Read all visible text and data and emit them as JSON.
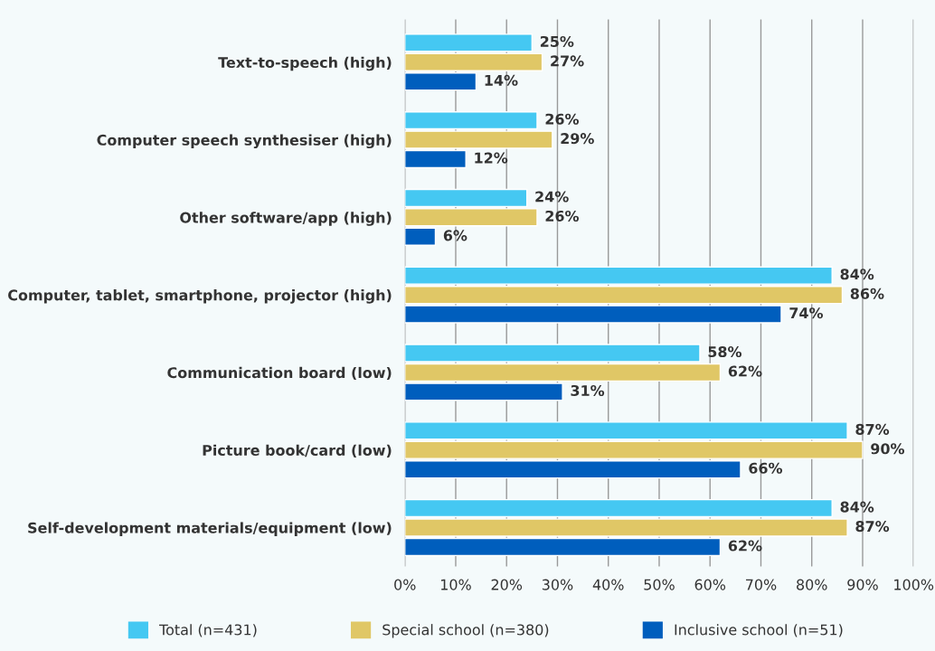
{
  "chart_data": {
    "type": "bar",
    "orientation": "horizontal",
    "categories": [
      "Text-to-speech (high)",
      "Computer speech synthesiser (high)",
      "Other software/app (high)",
      "Computer, tablet, smartphone, projector (high)",
      "Communication board (low)",
      "Picture book/card (low)",
      "Self-development materials/equipment (low)"
    ],
    "series": [
      {
        "name": "Total (n=431)",
        "color": "#45c8f2",
        "values": [
          25,
          26,
          24,
          84,
          58,
          87,
          84
        ],
        "value_labels": [
          "25%",
          "26%",
          "24%",
          "84%",
          "58%",
          "87%",
          "84%"
        ]
      },
      {
        "name": "Special school (n=380)",
        "color": "#e0c766",
        "values": [
          27,
          29,
          26,
          86,
          62,
          90,
          87
        ],
        "value_labels": [
          "27%",
          "29%",
          "26%",
          "86%",
          "62%",
          "90%",
          "87%"
        ]
      },
      {
        "name": "Inclusive school (n=51)",
        "color": "#005ebd",
        "values": [
          14,
          12,
          6,
          74,
          31,
          66,
          62
        ],
        "value_labels": [
          "14%",
          "12%",
          "6%",
          "74%",
          "31%",
          "66%",
          "62%"
        ]
      }
    ],
    "xlim": [
      0,
      100
    ],
    "xticks": [
      {
        "value": 0,
        "label": "0%"
      },
      {
        "value": 10,
        "label": "10%"
      },
      {
        "value": 20,
        "label": "20%"
      },
      {
        "value": 30,
        "label": "30%"
      },
      {
        "value": 40,
        "label": "40%"
      },
      {
        "value": 50,
        "label": "50%"
      },
      {
        "value": 60,
        "label": "60%"
      },
      {
        "value": 70,
        "label": "70%"
      },
      {
        "value": 80,
        "label": "80%"
      },
      {
        "value": 90,
        "label": "90%"
      },
      {
        "value": 100,
        "label": "100%"
      }
    ],
    "grid": "x",
    "legend": "bottom"
  }
}
